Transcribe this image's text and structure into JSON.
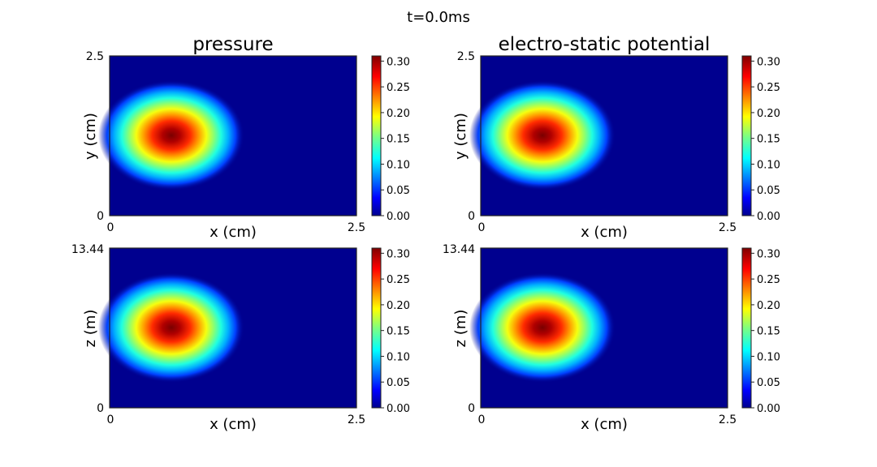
{
  "figure": {
    "suptitle": "t=0.0ms"
  },
  "colorbar": {
    "ticks": [
      "0.00",
      "0.05",
      "0.10",
      "0.15",
      "0.20",
      "0.25",
      "0.30"
    ]
  },
  "chart_data": [
    {
      "type": "heatmap",
      "title": "pressure",
      "xlabel": "x (cm)",
      "ylabel": "y (cm)",
      "xlim": [
        0,
        2.5
      ],
      "ylim": [
        0,
        2.5
      ],
      "xticks": [
        "0",
        "2.5"
      ],
      "yticks": [
        "0",
        "2.5"
      ],
      "colormap": "jet",
      "vmin": 0,
      "vmax": 0.31,
      "peak": {
        "x": 0.625,
        "y": 1.25,
        "value": 0.31
      },
      "colorbar_ticks": [
        0.0,
        0.05,
        0.1,
        0.15,
        0.2,
        0.25,
        0.3
      ]
    },
    {
      "type": "heatmap",
      "title": "electro-static potential",
      "xlabel": "x (cm)",
      "ylabel": "y (cm)",
      "xlim": [
        0,
        2.5
      ],
      "ylim": [
        0,
        2.5
      ],
      "xticks": [
        "0",
        "2.5"
      ],
      "yticks": [
        "0",
        "2.5"
      ],
      "colormap": "jet",
      "vmin": 0,
      "vmax": 0.31,
      "peak": {
        "x": 0.625,
        "y": 1.25,
        "value": 0.31
      },
      "colorbar_ticks": [
        0.0,
        0.05,
        0.1,
        0.15,
        0.2,
        0.25,
        0.3
      ]
    },
    {
      "type": "heatmap",
      "title": "",
      "xlabel": "x (cm)",
      "ylabel": "z (m)",
      "xlim": [
        0,
        2.5
      ],
      "ylim": [
        0,
        13.44
      ],
      "xticks": [
        "0",
        "2.5"
      ],
      "yticks": [
        "0",
        "13.44"
      ],
      "colormap": "jet",
      "vmin": 0,
      "vmax": 0.31,
      "peak": {
        "x": 0.625,
        "y": 6.72,
        "value": 0.31
      },
      "colorbar_ticks": [
        0.0,
        0.05,
        0.1,
        0.15,
        0.2,
        0.25,
        0.3
      ]
    },
    {
      "type": "heatmap",
      "title": "",
      "xlabel": "x (cm)",
      "ylabel": "z (m)",
      "xlim": [
        0,
        2.5
      ],
      "ylim": [
        0,
        13.44
      ],
      "xticks": [
        "0",
        "2.5"
      ],
      "yticks": [
        "0",
        "13.44"
      ],
      "colormap": "jet",
      "vmin": 0,
      "vmax": 0.31,
      "peak": {
        "x": 0.625,
        "y": 6.72,
        "value": 0.31
      },
      "colorbar_ticks": [
        0.0,
        0.05,
        0.1,
        0.15,
        0.2,
        0.25,
        0.3
      ]
    }
  ]
}
